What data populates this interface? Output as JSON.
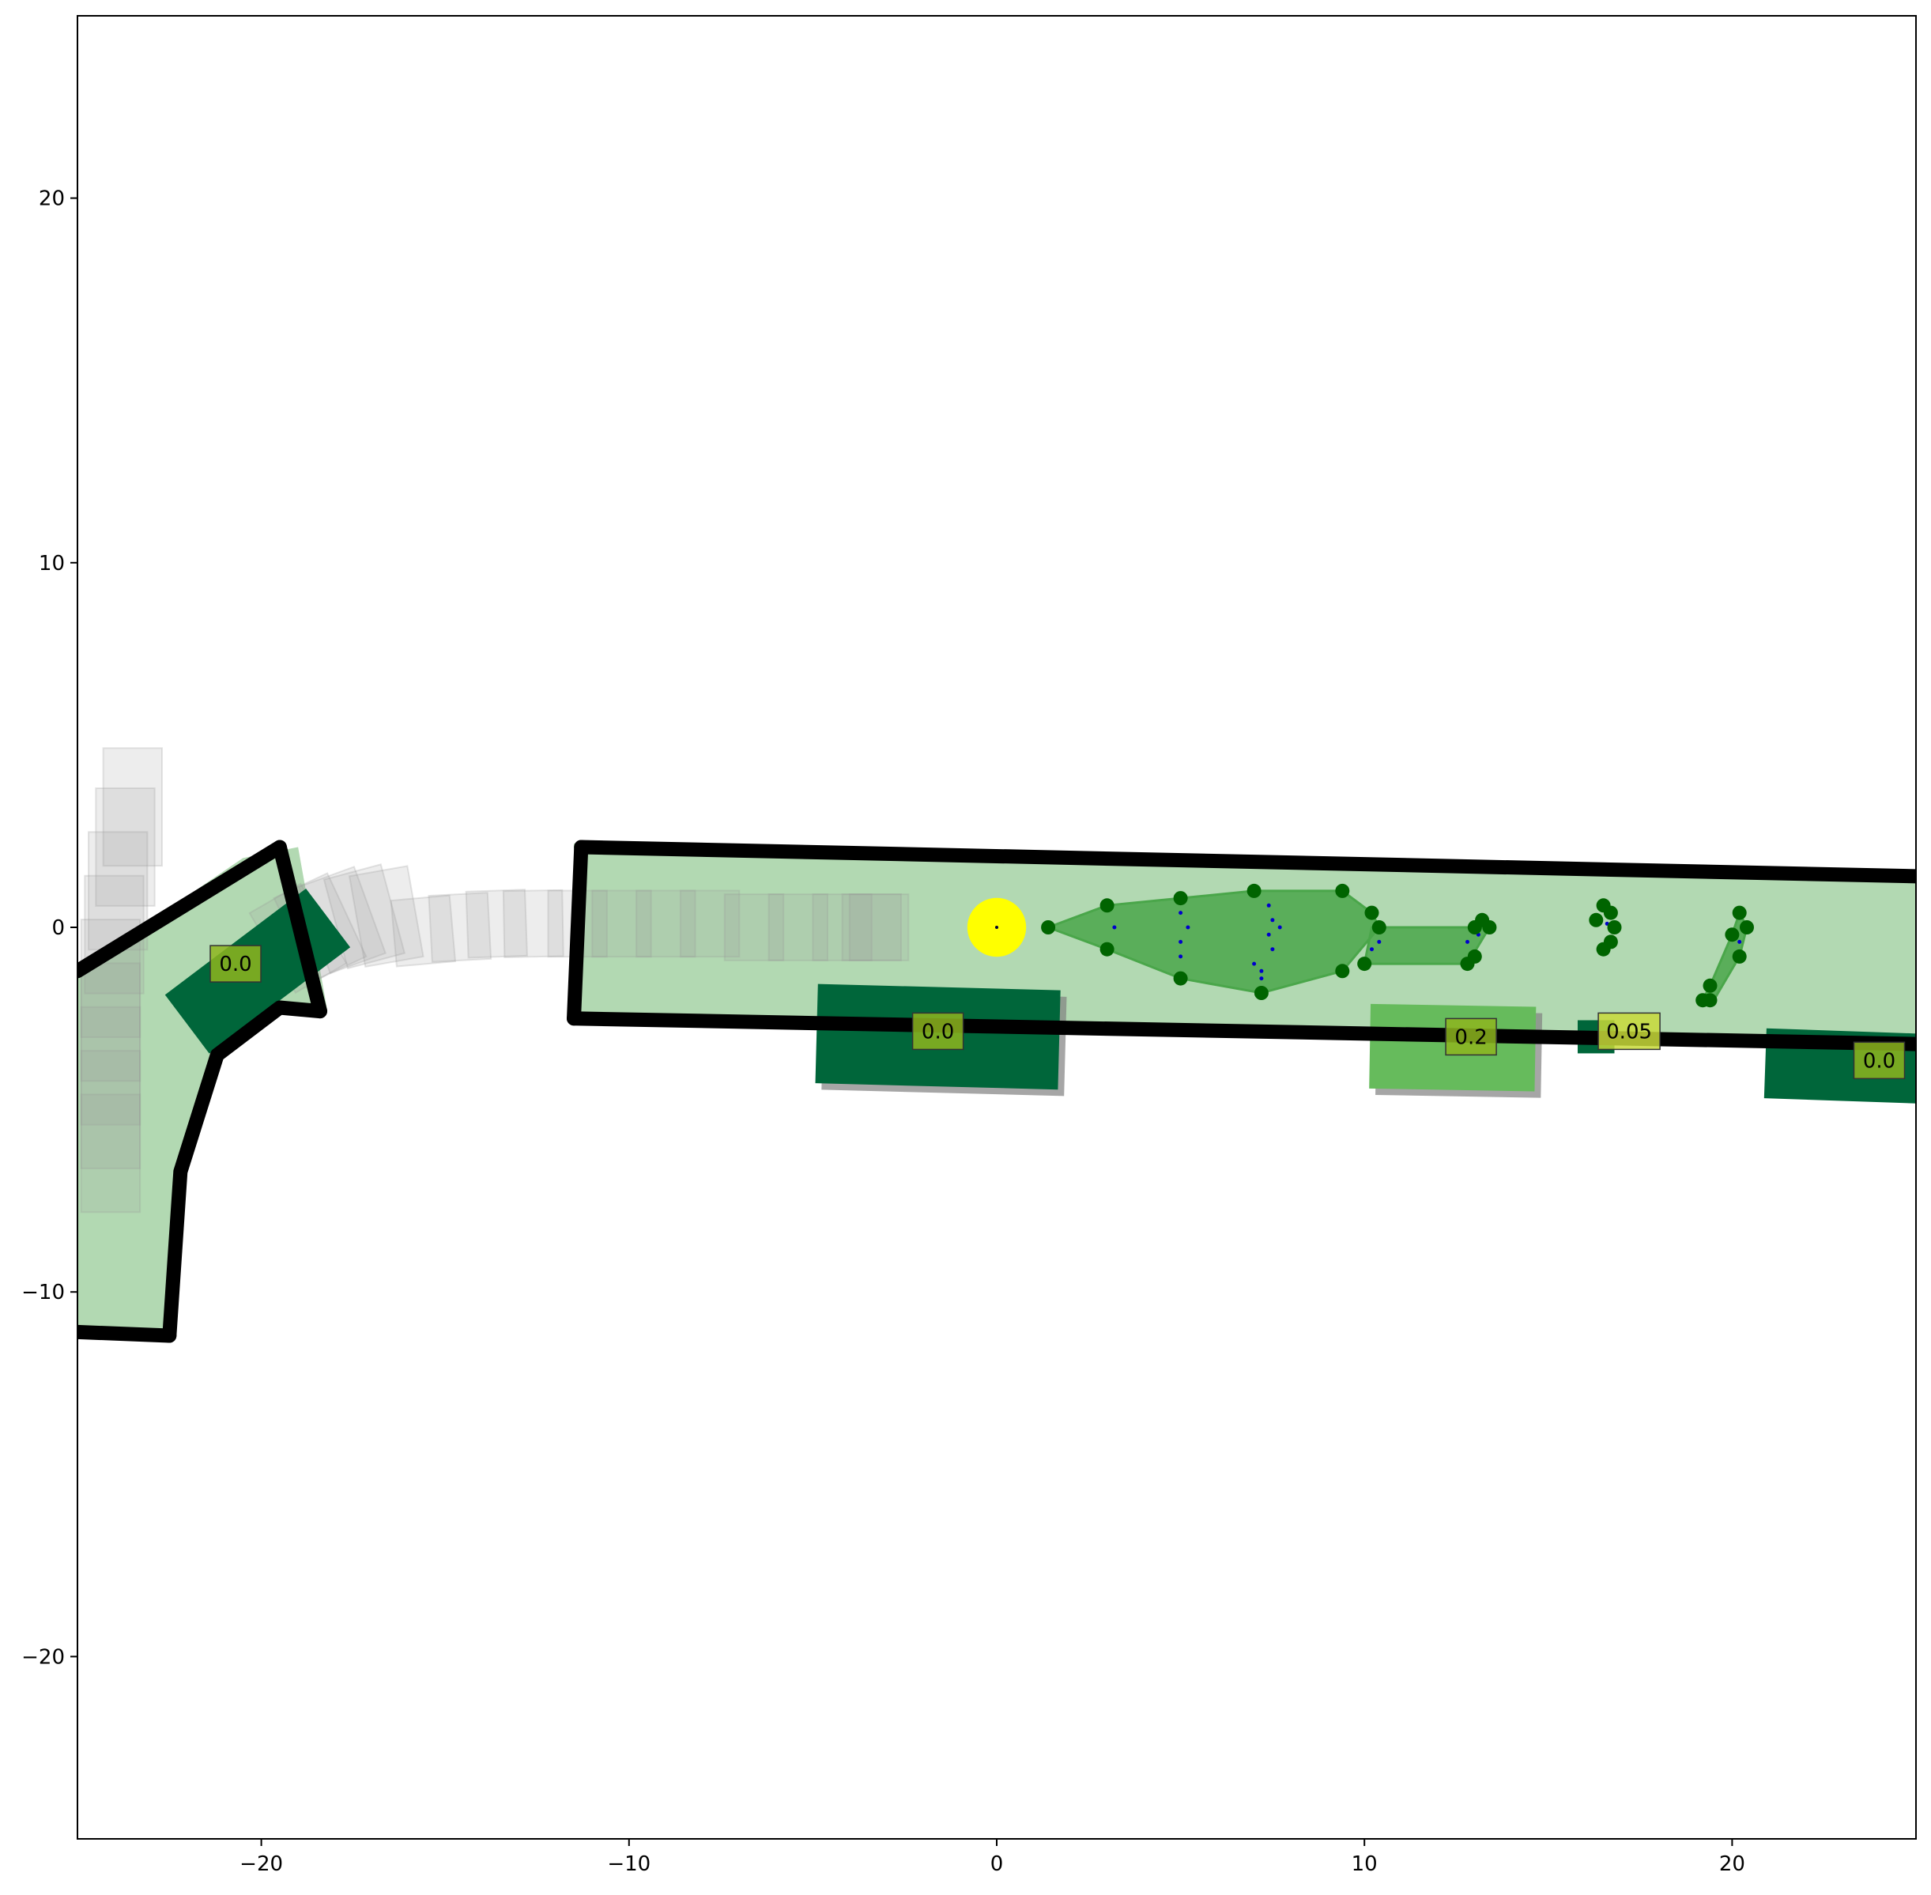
{
  "plot": {
    "xlim": [
      -25,
      25
    ],
    "ylim": [
      -25,
      25
    ],
    "x_ticks": [
      {
        "value": -20,
        "label": "−20"
      },
      {
        "value": -10,
        "label": "−10"
      },
      {
        "value": 0,
        "label": "0"
      },
      {
        "value": 10,
        "label": "10"
      },
      {
        "value": 20,
        "label": "20"
      }
    ],
    "y_ticks": [
      {
        "value": 20,
        "label": "20"
      },
      {
        "value": 10,
        "label": "10"
      },
      {
        "value": 0,
        "label": "0"
      },
      {
        "value": -10,
        "label": "−10"
      },
      {
        "value": -20,
        "label": "−20"
      }
    ]
  },
  "colors": {
    "lane_fill": "#b2d9b2",
    "lane_border": "#000000",
    "vehicle_dark": "#00663a",
    "vehicle_light": "#66bb5c",
    "label_box": "#8db51f",
    "label_box_highlight": "#c8d93a",
    "ego": "#ffff00",
    "prediction_fill": "#4aa64a",
    "prediction_node": "#006400",
    "prediction_path_dot": "#0000cc",
    "history_trail": "#999999"
  },
  "lanes": [
    {
      "name": "left-bend-lane",
      "polygon": [
        [
          -25,
          -1.2
        ],
        [
          -20.5,
          1.9
        ],
        [
          -19,
          2.2
        ],
        [
          -18.2,
          -2.3
        ],
        [
          -19.5,
          -2.2
        ],
        [
          -21.3,
          -3.5
        ],
        [
          -22.2,
          -6.7
        ],
        [
          -22.7,
          -11.2
        ],
        [
          -25,
          -11.1
        ]
      ]
    },
    {
      "name": "main-road-lane",
      "polygon": [
        [
          -11.5,
          2.3
        ],
        [
          25,
          1.4
        ],
        [
          25,
          -3.2
        ],
        [
          -11.5,
          -2.4
        ]
      ]
    }
  ],
  "lane_borders": [
    {
      "name": "left-bend-outer-border",
      "points": [
        [
          -25,
          -1.2
        ],
        [
          -19.5,
          2.2
        ]
      ]
    },
    {
      "name": "left-bend-end-border",
      "points": [
        [
          -19.5,
          2.2
        ],
        [
          -18.4,
          -2.3
        ]
      ]
    },
    {
      "name": "left-bend-inner-border",
      "points": [
        [
          -18.4,
          -2.3
        ],
        [
          -19.5,
          -2.2
        ],
        [
          -21.2,
          -3.5
        ],
        [
          -22.2,
          -6.7
        ],
        [
          -22.5,
          -11.2
        ]
      ]
    },
    {
      "name": "left-bend-bottom-border",
      "points": [
        [
          -22.5,
          -11.2
        ],
        [
          -25,
          -11.1
        ]
      ]
    },
    {
      "name": "main-road-top-border",
      "points": [
        [
          -11.3,
          2.2
        ],
        [
          25,
          1.4
        ]
      ]
    },
    {
      "name": "main-road-bottom-border",
      "points": [
        [
          -11.5,
          -2.5
        ],
        [
          25,
          -3.2
        ]
      ]
    },
    {
      "name": "main-road-start-border",
      "points": [
        [
          -11.3,
          2.2
        ],
        [
          -11.5,
          -2.5
        ]
      ]
    }
  ],
  "history_trail": [
    {
      "cx": -23.5,
      "cy": 3.3,
      "w": 3.2,
      "h": 1.6,
      "angle": 90
    },
    {
      "cx": -23.7,
      "cy": 2.2,
      "w": 3.2,
      "h": 1.6,
      "angle": 90
    },
    {
      "cx": -23.9,
      "cy": 1.0,
      "w": 3.2,
      "h": 1.6,
      "angle": 90
    },
    {
      "cx": -24.0,
      "cy": -0.2,
      "w": 3.2,
      "h": 1.6,
      "angle": 90
    },
    {
      "cx": -24.1,
      "cy": -1.4,
      "w": 3.2,
      "h": 1.6,
      "angle": 90
    },
    {
      "cx": -24.1,
      "cy": -2.6,
      "w": 3.2,
      "h": 1.6,
      "angle": 90
    },
    {
      "cx": -24.1,
      "cy": -3.8,
      "w": 3.2,
      "h": 1.6,
      "angle": 90
    },
    {
      "cx": -24.1,
      "cy": -5.0,
      "w": 3.2,
      "h": 1.6,
      "angle": 90
    },
    {
      "cx": -24.1,
      "cy": -6.2,
      "w": 3.2,
      "h": 1.6,
      "angle": 90
    },
    {
      "cx": -19.0,
      "cy": -0.3,
      "w": 1.6,
      "h": 2.5,
      "angle": 30
    },
    {
      "cx": -18.4,
      "cy": 0.0,
      "w": 1.6,
      "h": 2.5,
      "angle": 25
    },
    {
      "cx": -17.8,
      "cy": 0.2,
      "w": 1.6,
      "h": 2.5,
      "angle": 20
    },
    {
      "cx": -17.2,
      "cy": 0.3,
      "w": 1.6,
      "h": 2.5,
      "angle": 15
    },
    {
      "cx": -16.6,
      "cy": 0.3,
      "w": 1.6,
      "h": 2.5,
      "angle": 10
    },
    {
      "cx": -15.6,
      "cy": -0.1,
      "w": 1.6,
      "h": 1.8,
      "angle": 5
    },
    {
      "cx": -14.6,
      "cy": 0.0,
      "w": 1.6,
      "h": 1.8,
      "angle": 3
    },
    {
      "cx": -13.6,
      "cy": 0.1,
      "w": 1.6,
      "h": 1.8,
      "angle": 2
    },
    {
      "cx": -12.6,
      "cy": 0.1,
      "w": 1.6,
      "h": 1.8,
      "angle": 1
    },
    {
      "cx": -11.4,
      "cy": 0.1,
      "w": 1.6,
      "h": 1.8,
      "angle": 0
    },
    {
      "cx": -10.2,
      "cy": 0.1,
      "w": 1.6,
      "h": 1.8,
      "angle": 0
    },
    {
      "cx": -9.0,
      "cy": 0.1,
      "w": 1.6,
      "h": 1.8,
      "angle": 0
    },
    {
      "cx": -7.8,
      "cy": 0.1,
      "w": 1.6,
      "h": 1.8,
      "angle": 0
    },
    {
      "cx": -6.6,
      "cy": 0.0,
      "w": 1.6,
      "h": 1.8,
      "angle": 0
    },
    {
      "cx": -5.4,
      "cy": 0.0,
      "w": 1.6,
      "h": 1.8,
      "angle": 0
    },
    {
      "cx": -4.2,
      "cy": 0.0,
      "w": 1.6,
      "h": 1.8,
      "angle": 0
    },
    {
      "cx": -3.4,
      "cy": 0.0,
      "w": 1.6,
      "h": 1.8,
      "angle": 0
    },
    {
      "cx": -3.2,
      "cy": 0.0,
      "w": 1.6,
      "h": 1.8,
      "angle": 0
    }
  ],
  "vehicles": [
    {
      "name": "vehicle-left-bend",
      "cx": -20.1,
      "cy": -1.2,
      "w": 4.8,
      "h": 2.0,
      "angle": 37,
      "color": "vehicle_dark",
      "label": "0.0",
      "label_x": -20.7,
      "label_y": -1.0,
      "shadow": false
    },
    {
      "name": "vehicle-center",
      "cx": -1.6,
      "cy": -3.0,
      "w": 6.6,
      "h": 2.7,
      "angle": -1.5,
      "color": "vehicle_dark",
      "label": "0.0",
      "label_x": -1.6,
      "label_y": -2.85,
      "shadow": true
    },
    {
      "name": "vehicle-right-light",
      "cx": 12.4,
      "cy": -3.3,
      "w": 4.5,
      "h": 2.3,
      "angle": -1,
      "color": "vehicle_light",
      "label": "0.2",
      "label_x": 12.9,
      "label_y": -3.0,
      "shadow": true
    },
    {
      "name": "vehicle-small",
      "cx": 16.3,
      "cy": -3.0,
      "w": 1.0,
      "h": 0.9,
      "angle": 0,
      "color": "vehicle_dark",
      "label": "0.05",
      "label_x": 17.2,
      "label_y": -2.85,
      "shadow": false,
      "highlight": true
    },
    {
      "name": "vehicle-far-right",
      "cx": 23.0,
      "cy": -3.8,
      "w": 4.2,
      "h": 1.9,
      "angle": -2,
      "color": "vehicle_dark",
      "label": "0.0",
      "label_x": 24.0,
      "label_y": -3.65,
      "shadow": false
    }
  ],
  "ego": {
    "cx": 0.0,
    "cy": 0.0,
    "r": 0.8
  },
  "prediction_polygons": [
    {
      "name": "prediction-region-main",
      "points": [
        [
          1.4,
          0.0
        ],
        [
          3.0,
          0.6
        ],
        [
          5.0,
          0.8
        ],
        [
          7.0,
          1.0
        ],
        [
          9.4,
          1.0
        ],
        [
          10.2,
          0.4
        ],
        [
          10.4,
          0.0
        ],
        [
          9.4,
          -1.2
        ],
        [
          7.2,
          -1.8
        ],
        [
          5.0,
          -1.4
        ],
        [
          3.0,
          -0.6
        ]
      ]
    },
    {
      "name": "prediction-region-tail",
      "points": [
        [
          10.2,
          0.0
        ],
        [
          13.0,
          0.0
        ],
        [
          13.4,
          0.0
        ],
        [
          12.8,
          -1.0
        ],
        [
          10.0,
          -1.0
        ]
      ]
    },
    {
      "name": "prediction-region-far",
      "points": [
        [
          20.2,
          0.4
        ],
        [
          20.4,
          0.0
        ],
        [
          20.2,
          -0.8
        ],
        [
          19.5,
          -2.0
        ],
        [
          19.2,
          -2.0
        ],
        [
          19.4,
          -1.6
        ],
        [
          20.0,
          -0.2
        ]
      ]
    }
  ],
  "prediction_nodes": [
    [
      1.4,
      0.0
    ],
    [
      3.0,
      0.6
    ],
    [
      3.0,
      -0.6
    ],
    [
      5.0,
      0.8
    ],
    [
      5.0,
      -1.4
    ],
    [
      7.0,
      1.0
    ],
    [
      7.2,
      -1.8
    ],
    [
      9.4,
      1.0
    ],
    [
      9.4,
      -1.2
    ],
    [
      10.2,
      0.4
    ],
    [
      10.4,
      0.0
    ],
    [
      10.0,
      -1.0
    ],
    [
      13.0,
      0.0
    ],
    [
      13.2,
      0.2
    ],
    [
      13.4,
      0.0
    ],
    [
      12.8,
      -1.0
    ],
    [
      13.0,
      -0.8
    ],
    [
      16.5,
      0.6
    ],
    [
      16.7,
      0.4
    ],
    [
      16.3,
      0.2
    ],
    [
      16.8,
      0.0
    ],
    [
      16.7,
      -0.4
    ],
    [
      16.5,
      -0.6
    ],
    [
      20.2,
      0.4
    ],
    [
      20.4,
      0.0
    ],
    [
      20.0,
      -0.2
    ],
    [
      20.2,
      -0.8
    ],
    [
      19.4,
      -1.6
    ],
    [
      19.2,
      -2.0
    ],
    [
      19.4,
      -2.0
    ]
  ],
  "prediction_path_dots": [
    [
      3.2,
      0.0
    ],
    [
      5.0,
      0.4
    ],
    [
      5.2,
      0.0
    ],
    [
      5.0,
      -0.4
    ],
    [
      5.0,
      -0.8
    ],
    [
      7.4,
      0.6
    ],
    [
      7.5,
      0.2
    ],
    [
      7.7,
      0.0
    ],
    [
      7.4,
      -0.2
    ],
    [
      7.5,
      -0.6
    ],
    [
      7.0,
      -1.0
    ],
    [
      7.2,
      -1.2
    ],
    [
      7.2,
      -1.4
    ],
    [
      10.4,
      -0.4
    ],
    [
      10.2,
      -0.6
    ],
    [
      12.8,
      -0.4
    ],
    [
      13.1,
      -0.2
    ],
    [
      16.6,
      0.1
    ],
    [
      20.2,
      -0.4
    ]
  ]
}
